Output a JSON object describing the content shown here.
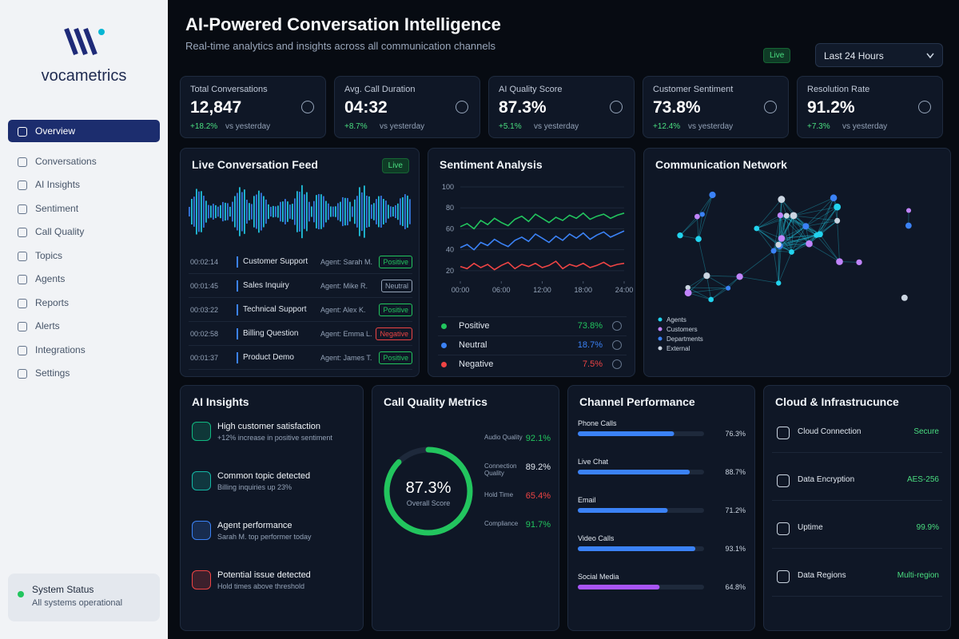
{
  "brand": "vocametrics",
  "nav": [
    "Overview",
    "Conversations",
    "AI Insights",
    "Sentiment",
    "Call Quality",
    "Topics",
    "Agents",
    "Reports",
    "Alerts",
    "Integrations",
    "Settings"
  ],
  "status": {
    "title": "System Status",
    "text": "All systems operational"
  },
  "header": {
    "title": "AI-Powered Conversation Intelligence",
    "subtitle": "Real-time analytics and insights across all communication channels",
    "live": "Live",
    "range": "Last 24 Hours"
  },
  "kpis": [
    {
      "label": "Total Conversations",
      "value": "12,847",
      "delta": "+18.2%",
      "note": "vs yesterday"
    },
    {
      "label": "Avg. Call Duration",
      "value": "04:32",
      "delta": "+8.7%",
      "note": "vs yesterday"
    },
    {
      "label": "AI Quality Score",
      "value": "87.3%",
      "delta": "+5.1%",
      "note": "vs yesterday"
    },
    {
      "label": "Customer Sentiment",
      "value": "73.8%",
      "delta": "+12.4%",
      "note": "vs yesterday"
    },
    {
      "label": "Resolution Rate",
      "value": "91.2%",
      "delta": "+7.3%",
      "note": "vs yesterday"
    }
  ],
  "feed": {
    "title": "Live Conversation Feed",
    "badge": "Live",
    "rows": [
      {
        "time": "00:02:14",
        "topic": "Customer Support",
        "agent": "Agent: Sarah M.",
        "sentiment": "Positive",
        "color": "#22c55e"
      },
      {
        "time": "00:01:45",
        "topic": "Sales Inquiry",
        "agent": "Agent: Mike R.",
        "sentiment": "Neutral",
        "color": "#94a3b8"
      },
      {
        "time": "00:03:22",
        "topic": "Technical Support",
        "agent": "Agent: Alex K.",
        "sentiment": "Positive",
        "color": "#22c55e"
      },
      {
        "time": "00:02:58",
        "topic": "Billing Question",
        "agent": "Agent: Emma L.",
        "sentiment": "Negative",
        "color": "#ef4444"
      },
      {
        "time": "00:01:37",
        "topic": "Product Demo",
        "agent": "Agent: James T.",
        "sentiment": "Positive",
        "color": "#22c55e"
      }
    ]
  },
  "sentiment": {
    "title": "Sentiment Analysis",
    "chart": {
      "type": "line",
      "x": [
        0,
        1,
        2,
        3,
        4,
        5,
        6,
        7,
        8,
        9,
        10,
        11,
        12,
        13,
        14,
        15,
        16,
        17,
        18,
        19,
        20,
        21,
        22,
        23,
        24
      ],
      "xlim": [
        0,
        24
      ],
      "xticks": [
        {
          "value": 0,
          "label": "00:00"
        },
        {
          "value": 6,
          "label": "06:00"
        },
        {
          "value": 12,
          "label": "12:00"
        },
        {
          "value": 18,
          "label": "18:00"
        },
        {
          "value": 24,
          "label": "24:00"
        }
      ],
      "ylim": [
        10,
        100
      ],
      "yticks": [
        20,
        40,
        60,
        80,
        100
      ],
      "grid": true,
      "series": [
        {
          "name": "Positive",
          "color": "#22c55e",
          "summary": "73.8%",
          "values": [
            62,
            65,
            60,
            68,
            64,
            70,
            66,
            63,
            69,
            72,
            67,
            74,
            70,
            66,
            71,
            68,
            73,
            70,
            75,
            69,
            72,
            74,
            70,
            73,
            75
          ]
        },
        {
          "name": "Neutral",
          "color": "#3b82f6",
          "summary": "18.7%",
          "values": [
            42,
            45,
            40,
            47,
            44,
            50,
            46,
            43,
            49,
            52,
            48,
            55,
            51,
            47,
            53,
            49,
            55,
            51,
            56,
            50,
            54,
            57,
            52,
            55,
            58
          ]
        },
        {
          "name": "Negative",
          "color": "#ef4444",
          "summary": "7.5%",
          "values": [
            24,
            22,
            27,
            23,
            26,
            21,
            25,
            28,
            22,
            26,
            24,
            27,
            23,
            25,
            29,
            22,
            26,
            24,
            27,
            23,
            25,
            28,
            24,
            26,
            27
          ]
        }
      ]
    }
  },
  "network": {
    "title": "Communication Network",
    "legend": [
      {
        "name": "Agents",
        "color": "#22d3ee"
      },
      {
        "name": "Customers",
        "color": "#c084fc"
      },
      {
        "name": "Departments",
        "color": "#3b82f6"
      },
      {
        "name": "External",
        "color": "#cbd5e1"
      }
    ]
  },
  "insights": {
    "title": "AI Insights",
    "items": [
      {
        "title": "High customer satisfaction",
        "text": "+12% increase in positive sentiment",
        "color": "#10b981"
      },
      {
        "title": "Common topic detected",
        "text": "Billing inquiries up 23%",
        "color": "#14b8a6"
      },
      {
        "title": "Agent performance",
        "text": "Sarah M. top performer today",
        "color": "#3b82f6"
      },
      {
        "title": "Potential issue detected",
        "text": "Hold times above threshold",
        "color": "#ef4444"
      }
    ]
  },
  "quality": {
    "title": "Call Quality Metrics",
    "gauge": {
      "value": 87.3,
      "label": "87.3%",
      "caption": "Overall Score",
      "max": 100,
      "color": "#22c55e"
    },
    "metrics": [
      {
        "name": "Audio Quality",
        "value": "92.1%",
        "color": "#22c55e"
      },
      {
        "name": "Connection Quality",
        "value": "89.2%",
        "color": "#e2e8f0"
      },
      {
        "name": "Hold Time",
        "value": "65.4%",
        "color": "#ef4444"
      },
      {
        "name": "Compliance",
        "value": "91.7%",
        "color": "#22c55e"
      }
    ]
  },
  "channels": {
    "title": "Channel Performance",
    "xlim": [
      0,
      100
    ],
    "categories": [
      "Phone Calls",
      "Live Chat",
      "Email",
      "Video Calls",
      "Social Media"
    ],
    "values": [
      76.3,
      88.7,
      71.2,
      93.1,
      64.8
    ],
    "value_labels": [
      "76.3%",
      "88.7%",
      "71.2%",
      "93.1%",
      "64.8%"
    ],
    "colors": [
      "#3b82f6",
      "#3b82f6",
      "#3b82f6",
      "#3b82f6",
      "#a855f7"
    ]
  },
  "cloud": {
    "title": "Cloud & Infrastrucunce",
    "items": [
      {
        "name": "Cloud Connection",
        "value": "Secure"
      },
      {
        "name": "Data Encryption",
        "value": "AES-256"
      },
      {
        "name": "Uptime",
        "value": "99.9%"
      },
      {
        "name": "Data Regions",
        "value": "Multi-region"
      }
    ]
  }
}
